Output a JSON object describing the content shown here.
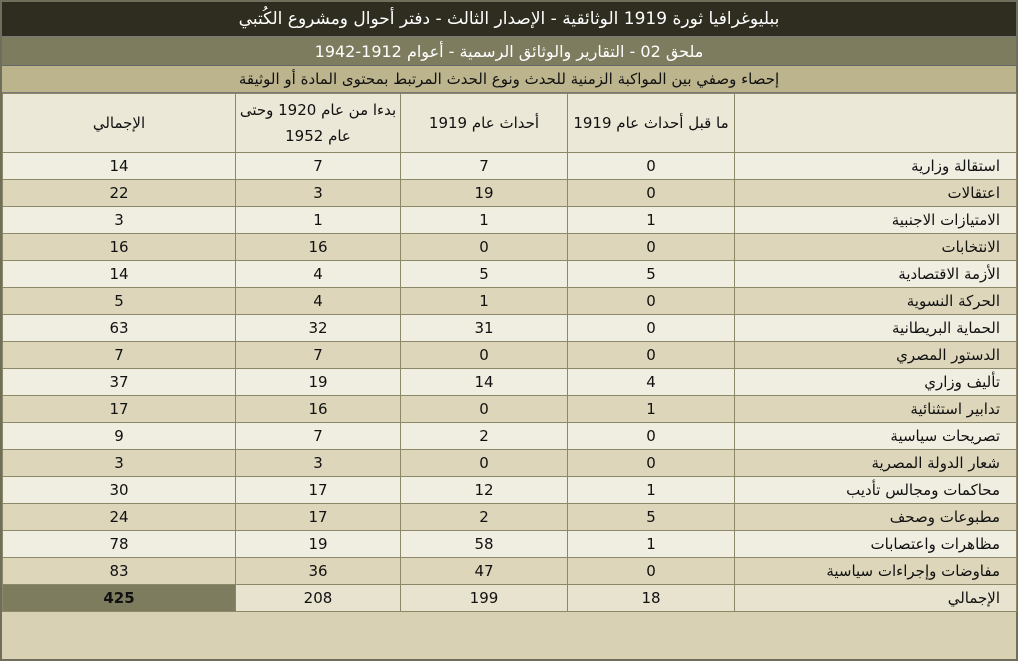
{
  "title": "ببليوغرافيا ثورة 1919 الوثائقية - الإصدار الثالث - دفتر أحوال ومشروع الكُتبي",
  "subtitle": "ملحق 02 - التقارير والوثائق الرسمية - أعوام 1912-1942",
  "description": "إحصاء وصفي بين المواكبة الزمنية للحدث ونوع الحدث المرتبط بمحتوى المادة أو الوثيقة",
  "headers": {
    "category": "",
    "pre_1919": "ما قبل أحداث عام 1919",
    "events_1919": "أحداث عام 1919",
    "post_1920": "بدءا من عام 1920 وحتى عام 1952",
    "total": "الإجمالي"
  },
  "rows": [
    {
      "name": "استقالة وزارية",
      "pre": "0",
      "y1919": "7",
      "post": "7",
      "total": "14"
    },
    {
      "name": "اعتقالات",
      "pre": "0",
      "y1919": "19",
      "post": "3",
      "total": "22"
    },
    {
      "name": "الامتيازات الاجنبية",
      "pre": "1",
      "y1919": "1",
      "post": "1",
      "total": "3"
    },
    {
      "name": "الانتخابات",
      "pre": "0",
      "y1919": "0",
      "post": "16",
      "total": "16"
    },
    {
      "name": "الأزمة الاقتصادية",
      "pre": "5",
      "y1919": "5",
      "post": "4",
      "total": "14"
    },
    {
      "name": "الحركة النسوية",
      "pre": "0",
      "y1919": "1",
      "post": "4",
      "total": "5"
    },
    {
      "name": "الحماية البريطانية",
      "pre": "0",
      "y1919": "31",
      "post": "32",
      "total": "63"
    },
    {
      "name": "الدستور المصري",
      "pre": "0",
      "y1919": "0",
      "post": "7",
      "total": "7"
    },
    {
      "name": "تأليف وزاري",
      "pre": "4",
      "y1919": "14",
      "post": "19",
      "total": "37"
    },
    {
      "name": "تدابير استثنائية",
      "pre": "1",
      "y1919": "0",
      "post": "16",
      "total": "17"
    },
    {
      "name": "تصريحات سياسية",
      "pre": "0",
      "y1919": "2",
      "post": "7",
      "total": "9"
    },
    {
      "name": "شعار الدولة المصرية",
      "pre": "0",
      "y1919": "0",
      "post": "3",
      "total": "3"
    },
    {
      "name": "محاكمات ومجالس تأديب",
      "pre": "1",
      "y1919": "12",
      "post": "17",
      "total": "30"
    },
    {
      "name": "مطبوعات وصحف",
      "pre": "5",
      "y1919": "2",
      "post": "17",
      "total": "24"
    },
    {
      "name": "مظاهرات واعتصابات",
      "pre": "1",
      "y1919": "58",
      "post": "19",
      "total": "78"
    },
    {
      "name": "مفاوضات وإجراءات سياسية",
      "pre": "0",
      "y1919": "47",
      "post": "36",
      "total": "83"
    }
  ],
  "totals": {
    "name": "الإجمالي",
    "pre": "18",
    "y1919": "199",
    "post": "208",
    "total": "425"
  },
  "colors": {
    "title_bg": "#2e2d1f",
    "subtitle_bg": "#7e7c5e",
    "description_bg": "#bcb48c",
    "row_light": "#f0ede1",
    "row_dark": "#ddd6bb",
    "grand_total_bg": "#7e7c5e"
  }
}
